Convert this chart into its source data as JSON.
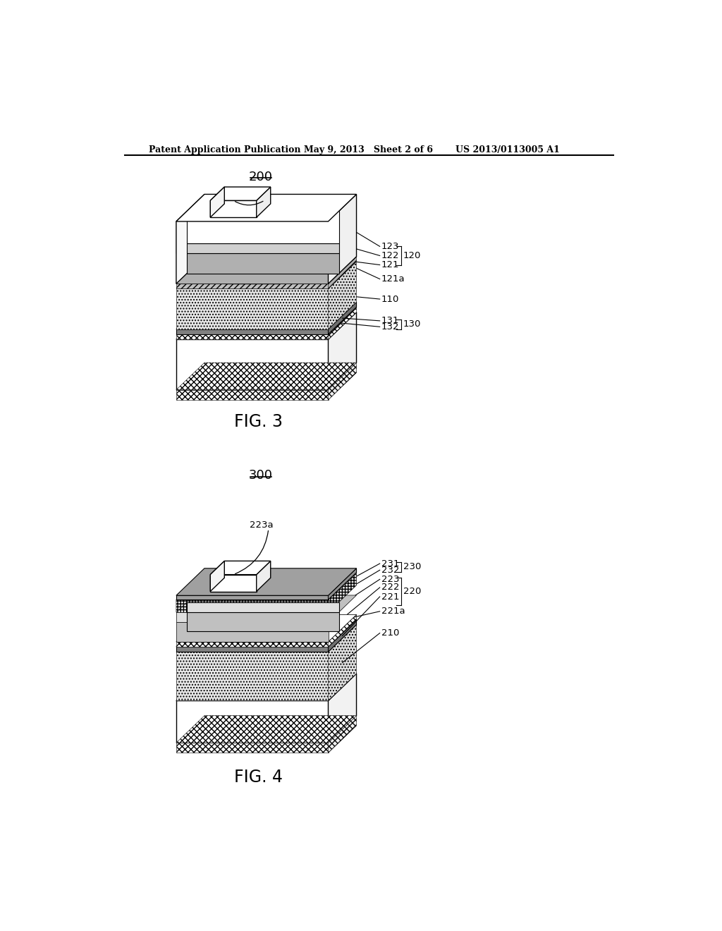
{
  "header_left": "Patent Application Publication",
  "header_mid": "May 9, 2013   Sheet 2 of 6",
  "header_right": "US 2013/0113005 A1",
  "fig3_label": "200",
  "fig3_caption": "FIG. 3",
  "fig4_label": "300",
  "fig4_caption": "FIG. 4",
  "text_color": "#000000",
  "bg_color": "#ffffff",
  "lfs": 9.5
}
